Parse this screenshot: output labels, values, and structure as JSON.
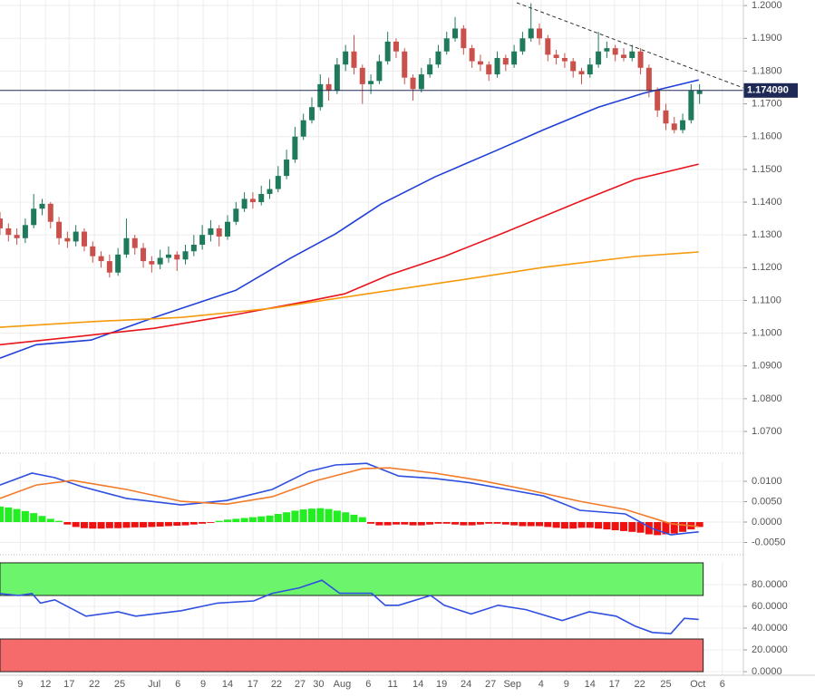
{
  "chart_data": [
    {
      "type": "candlestick",
      "xlim": [
        0,
        88.2
      ],
      "xticks": [
        {
          "value": 2.4,
          "label": "9"
        },
        {
          "value": 5.4,
          "label": "12"
        },
        {
          "value": 8.2,
          "label": "17"
        },
        {
          "value": 11.2,
          "label": "22"
        },
        {
          "value": 14.2,
          "label": "25"
        },
        {
          "value": 18.3,
          "label": "Jul"
        },
        {
          "value": 21.1,
          "label": "6"
        },
        {
          "value": 24.1,
          "label": "9"
        },
        {
          "value": 27,
          "label": "14"
        },
        {
          "value": 30,
          "label": "17"
        },
        {
          "value": 32.8,
          "label": "22"
        },
        {
          "value": 35.6,
          "label": "27"
        },
        {
          "value": 37.8,
          "label": "30"
        },
        {
          "value": 40.6,
          "label": "Aug"
        },
        {
          "value": 43.7,
          "label": "6"
        },
        {
          "value": 46.6,
          "label": "11"
        },
        {
          "value": 49.6,
          "label": "14"
        },
        {
          "value": 52.4,
          "label": "19"
        },
        {
          "value": 55.3,
          "label": "24"
        },
        {
          "value": 58.2,
          "label": "27"
        },
        {
          "value": 60.8,
          "label": "Sep"
        },
        {
          "value": 64.2,
          "label": "4"
        },
        {
          "value": 67.2,
          "label": "9"
        },
        {
          "value": 70,
          "label": "14"
        },
        {
          "value": 72.9,
          "label": "17"
        },
        {
          "value": 75.9,
          "label": "22"
        },
        {
          "value": 79,
          "label": "25"
        },
        {
          "value": 82.8,
          "label": "Oct"
        },
        {
          "value": 85.7,
          "label": "6"
        }
      ],
      "ylim": [
        1.0642,
        1.2017
      ],
      "yticks": [
        {
          "value": 1.2,
          "label": "1.2000"
        },
        {
          "value": 1.19,
          "label": "1.1900"
        },
        {
          "value": 1.18,
          "label": "1.1800"
        },
        {
          "value": 1.17,
          "label": "1.1700"
        },
        {
          "value": 1.16,
          "label": "1.1600"
        },
        {
          "value": 1.15,
          "label": "1.1500"
        },
        {
          "value": 1.14,
          "label": "1.1400"
        },
        {
          "value": 1.13,
          "label": "1.1300"
        },
        {
          "value": 1.12,
          "label": "1.1200"
        },
        {
          "value": 1.11,
          "label": "1.1100"
        },
        {
          "value": 1.1,
          "label": "1.1000"
        },
        {
          "value": 1.09,
          "label": "1.0900"
        },
        {
          "value": 1.08,
          "label": "1.0800"
        },
        {
          "value": 1.07,
          "label": "1.0700"
        }
      ],
      "grid": true,
      "up_color": "#1f7a5c",
      "down_color": "#c9504b",
      "ohlc": [
        [
          1.135,
          1.137,
          1.13,
          1.132
        ],
        [
          1.132,
          1.1335,
          1.128,
          1.13
        ],
        [
          1.13,
          1.132,
          1.127,
          1.129
        ],
        [
          1.129,
          1.135,
          1.1275,
          1.133
        ],
        [
          1.133,
          1.1425,
          1.132,
          1.138
        ],
        [
          1.138,
          1.141,
          1.136,
          1.1395
        ],
        [
          1.1395,
          1.14,
          1.132,
          1.134
        ],
        [
          1.134,
          1.1355,
          1.127,
          1.129
        ],
        [
          1.129,
          1.131,
          1.126,
          1.128
        ],
        [
          1.128,
          1.133,
          1.1265,
          1.131
        ],
        [
          1.131,
          1.132,
          1.125,
          1.1265
        ],
        [
          1.1265,
          1.128,
          1.1215,
          1.1235
        ],
        [
          1.1235,
          1.125,
          1.12,
          1.122
        ],
        [
          1.122,
          1.124,
          1.117,
          1.1185
        ],
        [
          1.1185,
          1.126,
          1.1175,
          1.124
        ],
        [
          1.124,
          1.135,
          1.123,
          1.129
        ],
        [
          1.129,
          1.13,
          1.124,
          1.126
        ],
        [
          1.126,
          1.1275,
          1.12,
          1.122
        ],
        [
          1.122,
          1.1235,
          1.1185,
          1.121
        ],
        [
          1.121,
          1.1255,
          1.1195,
          1.123
        ],
        [
          1.123,
          1.1265,
          1.1215,
          1.124
        ],
        [
          1.124,
          1.125,
          1.119,
          1.1225
        ],
        [
          1.1225,
          1.127,
          1.121,
          1.125
        ],
        [
          1.125,
          1.13,
          1.1235,
          1.127
        ],
        [
          1.127,
          1.133,
          1.1255,
          1.13
        ],
        [
          1.13,
          1.1345,
          1.128,
          1.132
        ],
        [
          1.132,
          1.133,
          1.1265,
          1.1295
        ],
        [
          1.1295,
          1.136,
          1.1285,
          1.134
        ],
        [
          1.134,
          1.14,
          1.133,
          1.138
        ],
        [
          1.138,
          1.143,
          1.137,
          1.141
        ],
        [
          1.141,
          1.143,
          1.138,
          1.14
        ],
        [
          1.14,
          1.145,
          1.139,
          1.1425
        ],
        [
          1.1425,
          1.147,
          1.141,
          1.144
        ],
        [
          1.144,
          1.151,
          1.143,
          1.148
        ],
        [
          1.148,
          1.156,
          1.147,
          1.153
        ],
        [
          1.153,
          1.163,
          1.152,
          1.16
        ],
        [
          1.16,
          1.167,
          1.159,
          1.165
        ],
        [
          1.165,
          1.172,
          1.164,
          1.169
        ],
        [
          1.169,
          1.179,
          1.168,
          1.176
        ],
        [
          1.176,
          1.178,
          1.171,
          1.174
        ],
        [
          1.174,
          1.184,
          1.173,
          1.182
        ],
        [
          1.182,
          1.188,
          1.18,
          1.186
        ],
        [
          1.186,
          1.191,
          1.179,
          1.181
        ],
        [
          1.181,
          1.182,
          1.17,
          1.176
        ],
        [
          1.176,
          1.179,
          1.173,
          1.177
        ],
        [
          1.177,
          1.185,
          1.176,
          1.183
        ],
        [
          1.183,
          1.192,
          1.182,
          1.189
        ],
        [
          1.189,
          1.19,
          1.184,
          1.186
        ],
        [
          1.186,
          1.187,
          1.176,
          1.178
        ],
        [
          1.178,
          1.179,
          1.171,
          1.1745
        ],
        [
          1.1745,
          1.181,
          1.1735,
          1.179
        ],
        [
          1.179,
          1.184,
          1.178,
          1.182
        ],
        [
          1.182,
          1.188,
          1.181,
          1.186
        ],
        [
          1.186,
          1.192,
          1.185,
          1.19
        ],
        [
          1.19,
          1.1965,
          1.189,
          1.193
        ],
        [
          1.193,
          1.194,
          1.185,
          1.187
        ],
        [
          1.187,
          1.188,
          1.181,
          1.183
        ],
        [
          1.183,
          1.185,
          1.18,
          1.182
        ],
        [
          1.182,
          1.183,
          1.177,
          1.179
        ],
        [
          1.179,
          1.186,
          1.178,
          1.184
        ],
        [
          1.184,
          1.185,
          1.18,
          1.182
        ],
        [
          1.182,
          1.188,
          1.181,
          1.186
        ],
        [
          1.186,
          1.192,
          1.185,
          1.19
        ],
        [
          1.19,
          1.2007,
          1.189,
          1.193
        ],
        [
          1.193,
          1.1945,
          1.188,
          1.19
        ],
        [
          1.19,
          1.191,
          1.183,
          1.185
        ],
        [
          1.185,
          1.1865,
          1.182,
          1.184
        ],
        [
          1.184,
          1.1855,
          1.181,
          1.183
        ],
        [
          1.183,
          1.184,
          1.178,
          1.18
        ],
        [
          1.18,
          1.181,
          1.176,
          1.179
        ],
        [
          1.179,
          1.184,
          1.178,
          1.182
        ],
        [
          1.182,
          1.192,
          1.181,
          1.186
        ],
        [
          1.186,
          1.189,
          1.184,
          1.187
        ],
        [
          1.187,
          1.188,
          1.183,
          1.185
        ],
        [
          1.185,
          1.187,
          1.183,
          1.184
        ],
        [
          1.184,
          1.188,
          1.183,
          1.186
        ],
        [
          1.186,
          1.187,
          1.179,
          1.181
        ],
        [
          1.181,
          1.182,
          1.172,
          1.174
        ],
        [
          1.174,
          1.175,
          1.166,
          1.168
        ],
        [
          1.168,
          1.17,
          1.162,
          1.164
        ],
        [
          1.164,
          1.166,
          1.161,
          1.162
        ],
        [
          1.162,
          1.167,
          1.161,
          1.165
        ],
        [
          1.165,
          1.176,
          1.164,
          1.174
        ],
        [
          1.173,
          1.176,
          1.17,
          1.1741
        ]
      ],
      "series": [
        {
          "color": "#1f3fd6",
          "x": [
            0,
            4.3,
            10.8,
            18.3,
            28,
            34.4,
            39.8,
            45.2,
            51.6,
            59.1,
            64.5,
            71,
            76.3,
            82.9
          ],
          "values": [
            1.0924,
            1.0965,
            1.0979,
            1.1048,
            1.1131,
            1.1228,
            1.1303,
            1.1394,
            1.1477,
            1.156,
            1.1621,
            1.169,
            1.1732,
            1.1773
          ]
        },
        {
          "color": "#e8141c",
          "x": [
            0,
            8.6,
            18.3,
            28,
            36.6,
            40.9,
            46.2,
            52.7,
            60.2,
            68.8,
            75.3,
            82.9
          ],
          "values": [
            1.0965,
            1.0988,
            1.1015,
            1.1057,
            1.1098,
            1.112,
            1.1178,
            1.1234,
            1.1311,
            1.1402,
            1.1469,
            1.1516
          ]
        },
        {
          "color": "#f59a0c",
          "x": [
            0,
            10.8,
            21.5,
            32.3,
            43,
            53.8,
            64.5,
            75.3,
            82.9
          ],
          "values": [
            1.1018,
            1.1035,
            1.1048,
            1.1076,
            1.1118,
            1.1159,
            1.1201,
            1.1234,
            1.1248
          ]
        }
      ],
      "last_price": {
        "value": 1.17409,
        "label": "1.174090"
      }
    },
    {
      "type": "macd",
      "ylim": [
        -0.00711,
        0.01467
      ],
      "yticks": [
        {
          "value": 0.01,
          "label": "0.0100"
        },
        {
          "value": 0.005,
          "label": "0.0050"
        },
        {
          "value": 0,
          "label": "0.0000"
        },
        {
          "value": -0.005,
          "label": "-0.0050"
        }
      ],
      "histogram": {
        "positive_color": "#22ee22",
        "negative_color": "#ee1111",
        "values": [
          0.0038,
          0.0036,
          0.0032,
          0.0027,
          0.0022,
          0.0015,
          0.0008,
          0.0003,
          -0.0006,
          -0.0012,
          -0.0015,
          -0.0016,
          -0.0016,
          -0.0015,
          -0.0015,
          -0.0014,
          -0.0013,
          -0.0013,
          -0.0012,
          -0.0011,
          -0.001,
          -0.0009,
          -0.0008,
          -0.0006,
          -0.0004,
          -0.0002,
          0.0003,
          0.0006,
          0.0008,
          0.001,
          0.0012,
          0.0014,
          0.0016,
          0.002,
          0.0024,
          0.0028,
          0.0031,
          0.0033,
          0.0034,
          0.0032,
          0.0028,
          0.0024,
          0.0018,
          0.0012,
          -0.0004,
          -0.0008,
          -0.0008,
          -0.0006,
          -0.0006,
          -0.0008,
          -0.0008,
          -0.0006,
          -0.0004,
          -0.0004,
          -0.0006,
          -0.0008,
          -0.0008,
          -0.0006,
          -0.0004,
          -0.0004,
          -0.0006,
          -0.0008,
          -0.001,
          -0.001,
          -0.001,
          -0.0012,
          -0.0014,
          -0.0016,
          -0.0016,
          -0.0014,
          -0.0014,
          -0.0016,
          -0.0018,
          -0.002,
          -0.0022,
          -0.0024,
          -0.0026,
          -0.003,
          -0.0032,
          -0.003,
          -0.0028,
          -0.0024,
          -0.0018,
          -0.0012
        ]
      },
      "series": [
        {
          "color": "#2f4fe0",
          "x": [
            0,
            3.8,
            6.5,
            9.7,
            15,
            21.5,
            26.9,
            32.3,
            36.6,
            39.8,
            43.5,
            47.3,
            51.6,
            55.9,
            60.2,
            64.5,
            68.8,
            74.2,
            77.4,
            79.6,
            82.9
          ],
          "values": [
            0.0091,
            0.012,
            0.0109,
            0.0087,
            0.0058,
            0.0042,
            0.0053,
            0.008,
            0.0124,
            0.014,
            0.0144,
            0.0113,
            0.0107,
            0.0096,
            0.008,
            0.0064,
            0.0029,
            0.002,
            -0.0016,
            -0.0031,
            -0.0024
          ]
        },
        {
          "color": "#f27b2a",
          "x": [
            0,
            4.3,
            8.6,
            15,
            21.5,
            26.9,
            32.3,
            37.6,
            43,
            46.2,
            51.6,
            57,
            62.4,
            68.8,
            74.2,
            79.6,
            82.9
          ],
          "values": [
            0.0058,
            0.0091,
            0.0102,
            0.008,
            0.0051,
            0.0044,
            0.0062,
            0.0102,
            0.0131,
            0.0133,
            0.012,
            0.0102,
            0.008,
            0.0051,
            0.0031,
            -0.0004,
            -0.0011
          ]
        }
      ]
    },
    {
      "type": "rsi",
      "ylim": [
        -3.3,
        100.8
      ],
      "yticks": [
        {
          "value": 80,
          "label": "80.0000"
        },
        {
          "value": 60,
          "label": "60.0000"
        },
        {
          "value": 40,
          "label": "40.0000"
        },
        {
          "value": 20,
          "label": "20.0000"
        },
        {
          "value": 0,
          "label": "0.0000"
        }
      ],
      "zones": [
        {
          "from": 70,
          "to": 100,
          "color": "#6cf56c"
        },
        {
          "from": 0,
          "to": 30,
          "color": "#f56a6a"
        }
      ],
      "series": [
        {
          "color": "#2f4fe0",
          "x": [
            0,
            2.2,
            3.8,
            4.8,
            6.5,
            10.2,
            14,
            16.1,
            21.5,
            25.8,
            30.1,
            32.3,
            35.5,
            38.2,
            40.3,
            44.1,
            45.7,
            47.3,
            51.1,
            52.7,
            55.9,
            59.1,
            62.4,
            66.7,
            69.9,
            73.1,
            75.3,
            77.4,
            79.6,
            81.2,
            82.9
          ],
          "values": [
            71.7,
            70,
            71.7,
            63,
            66,
            51,
            55,
            51,
            56,
            63,
            65,
            72,
            77,
            84,
            72,
            72,
            61,
            61,
            70,
            61,
            53,
            61,
            57,
            47,
            55,
            51,
            42,
            36,
            35,
            49,
            48
          ]
        }
      ]
    }
  ]
}
